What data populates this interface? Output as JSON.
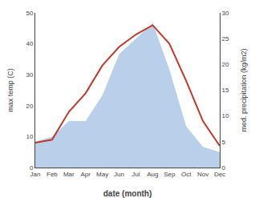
{
  "chart_data": {
    "type": "line",
    "categories": [
      "Jan",
      "Feb",
      "Mar",
      "Apr",
      "May",
      "Jun",
      "Jul",
      "Aug",
      "Sep",
      "Oct",
      "Nov",
      "Dec"
    ],
    "xlabel": "date (month)",
    "ylabel": "max temp (C)",
    "y2label": "med. precipitation (kg/m2)",
    "series": [
      {
        "type": "area",
        "axis": "y2",
        "color": "#bad0ea",
        "values": [
          5,
          6,
          9,
          9,
          14,
          22,
          25,
          28,
          19,
          8,
          4,
          3
        ]
      },
      {
        "type": "line",
        "color": "#c0392b",
        "values": [
          8,
          9,
          18,
          24,
          33,
          39,
          43,
          46,
          40,
          28,
          15,
          7
        ]
      }
    ],
    "ylim": [
      0,
      50
    ],
    "yticks": [
      0,
      10,
      20,
      30,
      40,
      50
    ],
    "y2lim": [
      0,
      30
    ],
    "y2ticks": [
      0,
      5,
      10,
      15,
      20,
      25,
      30
    ],
    "grid": false
  }
}
